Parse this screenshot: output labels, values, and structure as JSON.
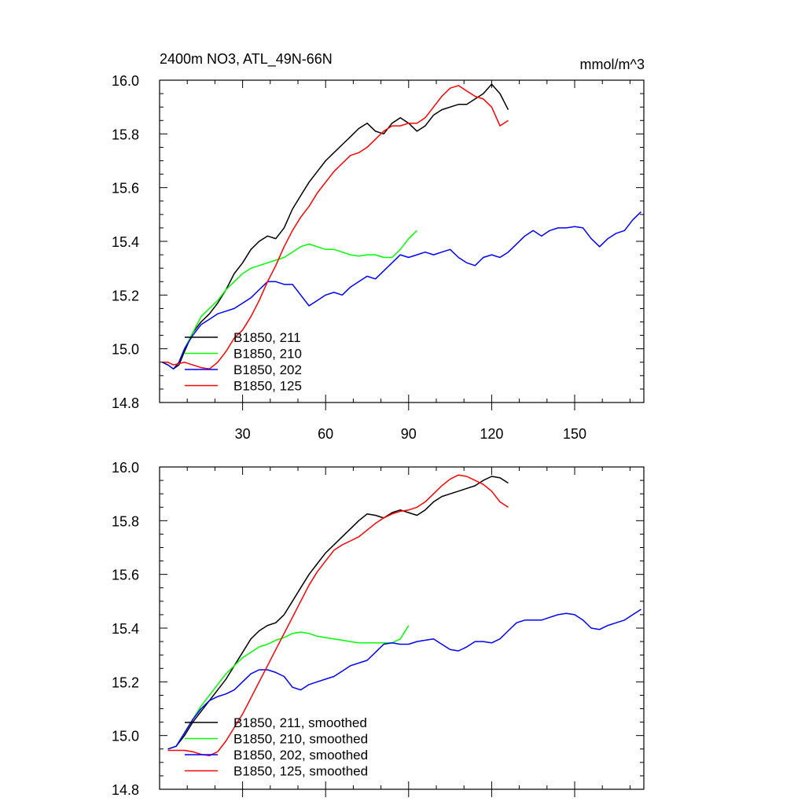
{
  "chart_data": [
    {
      "type": "line",
      "title": "2400m NO3, ATL_49N-66N",
      "units": "mmol/m^3",
      "xlim": [
        0,
        175
      ],
      "ylim": [
        14.8,
        16.0
      ],
      "x_ticks": [
        30,
        60,
        90,
        120,
        150
      ],
      "x_tick_labels": [
        "30",
        "60",
        "90",
        "120",
        "150"
      ],
      "y_ticks": [
        14.8,
        15.0,
        15.2,
        15.4,
        15.6,
        15.8,
        16.0
      ],
      "y_tick_labels": [
        "14.8",
        "15.0",
        "15.2",
        "15.4",
        "15.6",
        "15.8",
        "16.0"
      ],
      "legend_position": "bottom-left",
      "series": [
        {
          "name": "B1850, 211",
          "color": "#000000",
          "x": [
            1,
            3,
            5,
            7,
            9,
            12,
            15,
            18,
            21,
            24,
            27,
            30,
            33,
            36,
            39,
            42,
            45,
            48,
            51,
            54,
            57,
            60,
            63,
            66,
            69,
            72,
            75,
            78,
            81,
            84,
            87,
            90,
            93,
            96,
            99,
            102,
            105,
            108,
            111,
            114,
            117,
            120,
            123,
            126
          ],
          "y": [
            14.95,
            14.94,
            14.925,
            14.94,
            14.99,
            15.06,
            15.1,
            15.13,
            15.17,
            15.22,
            15.28,
            15.32,
            15.37,
            15.4,
            15.42,
            15.41,
            15.45,
            15.52,
            15.57,
            15.62,
            15.66,
            15.7,
            15.73,
            15.76,
            15.79,
            15.82,
            15.84,
            15.81,
            15.8,
            15.84,
            15.86,
            15.84,
            15.81,
            15.83,
            15.87,
            15.89,
            15.9,
            15.91,
            15.91,
            15.93,
            15.95,
            15.985,
            15.95,
            15.89
          ]
        },
        {
          "name": "B1850, 210",
          "color": "#00ff00",
          "x": [
            1,
            3,
            5,
            7,
            9,
            12,
            15,
            18,
            21,
            24,
            27,
            30,
            33,
            36,
            39,
            42,
            45,
            48,
            51,
            54,
            57,
            60,
            63,
            66,
            69,
            72,
            75,
            78,
            81,
            84,
            87,
            90,
            93
          ],
          "y": [
            14.95,
            14.94,
            14.925,
            14.95,
            15.0,
            15.06,
            15.12,
            15.15,
            15.18,
            15.22,
            15.25,
            15.28,
            15.3,
            15.31,
            15.32,
            15.33,
            15.34,
            15.36,
            15.38,
            15.39,
            15.38,
            15.37,
            15.37,
            15.36,
            15.35,
            15.345,
            15.35,
            15.35,
            15.34,
            15.34,
            15.37,
            15.41,
            15.44
          ]
        },
        {
          "name": "B1850, 202",
          "color": "#0000ff",
          "x": [
            1,
            3,
            5,
            7,
            9,
            12,
            15,
            18,
            21,
            24,
            27,
            30,
            33,
            36,
            39,
            42,
            45,
            48,
            51,
            54,
            57,
            60,
            63,
            66,
            69,
            72,
            75,
            78,
            81,
            84,
            87,
            90,
            93,
            96,
            99,
            102,
            105,
            108,
            111,
            114,
            117,
            120,
            123,
            126,
            129,
            132,
            135,
            138,
            141,
            144,
            147,
            150,
            153,
            156,
            159,
            162,
            165,
            168,
            171,
            174
          ],
          "y": [
            14.95,
            14.94,
            14.925,
            14.95,
            15.0,
            15.05,
            15.09,
            15.11,
            15.13,
            15.14,
            15.15,
            15.17,
            15.19,
            15.22,
            15.25,
            15.25,
            15.24,
            15.24,
            15.2,
            15.16,
            15.18,
            15.2,
            15.21,
            15.2,
            15.23,
            15.25,
            15.27,
            15.26,
            15.29,
            15.32,
            15.35,
            15.34,
            15.35,
            15.36,
            15.35,
            15.36,
            15.37,
            15.34,
            15.32,
            15.31,
            15.34,
            15.35,
            15.34,
            15.36,
            15.39,
            15.42,
            15.44,
            15.42,
            15.44,
            15.45,
            15.45,
            15.455,
            15.45,
            15.41,
            15.38,
            15.41,
            15.43,
            15.44,
            15.48,
            15.51
          ]
        },
        {
          "name": "B1850, 125",
          "color": "#ff0000",
          "x": [
            1,
            3,
            5,
            7,
            9,
            12,
            15,
            18,
            21,
            24,
            27,
            30,
            33,
            36,
            39,
            42,
            45,
            48,
            51,
            54,
            57,
            60,
            63,
            66,
            69,
            72,
            75,
            78,
            81,
            84,
            87,
            90,
            93,
            96,
            99,
            102,
            105,
            108,
            111,
            114,
            117,
            120,
            123,
            126
          ],
          "y": [
            14.95,
            14.95,
            14.94,
            14.945,
            14.95,
            14.94,
            14.93,
            14.925,
            14.95,
            14.99,
            15.04,
            15.07,
            15.12,
            15.18,
            15.25,
            15.31,
            15.38,
            15.44,
            15.49,
            15.53,
            15.58,
            15.62,
            15.66,
            15.69,
            15.72,
            15.73,
            15.75,
            15.78,
            15.81,
            15.83,
            15.83,
            15.84,
            15.84,
            15.86,
            15.9,
            15.94,
            15.97,
            15.98,
            15.96,
            15.94,
            15.93,
            15.9,
            15.83,
            15.85
          ]
        }
      ]
    },
    {
      "type": "line",
      "xlim": [
        0,
        175
      ],
      "ylim": [
        14.8,
        16.0
      ],
      "y_ticks": [
        14.8,
        15.0,
        15.2,
        15.4,
        15.6,
        15.8,
        16.0
      ],
      "y_tick_labels": [
        "14.8",
        "15.0",
        "15.2",
        "15.4",
        "15.6",
        "15.8",
        "16.0"
      ],
      "x_ticks": [
        30,
        60,
        90,
        120,
        150
      ],
      "legend_position": "bottom-left",
      "series": [
        {
          "name": "B1850, 211, smoothed",
          "color": "#000000",
          "x": [
            3,
            6,
            9,
            12,
            15,
            18,
            21,
            24,
            27,
            30,
            33,
            36,
            39,
            42,
            45,
            48,
            51,
            54,
            57,
            60,
            63,
            66,
            69,
            72,
            75,
            78,
            81,
            84,
            87,
            90,
            93,
            96,
            99,
            102,
            105,
            108,
            111,
            114,
            117,
            120,
            123,
            126
          ],
          "y": [
            14.95,
            14.96,
            15.0,
            15.05,
            15.09,
            15.13,
            15.17,
            15.21,
            15.26,
            15.31,
            15.36,
            15.39,
            15.41,
            15.42,
            15.45,
            15.5,
            15.55,
            15.6,
            15.64,
            15.68,
            15.71,
            15.74,
            15.77,
            15.8,
            15.825,
            15.82,
            15.81,
            15.83,
            15.84,
            15.83,
            15.82,
            15.84,
            15.87,
            15.89,
            15.9,
            15.91,
            15.92,
            15.93,
            15.95,
            15.965,
            15.96,
            15.94
          ]
        },
        {
          "name": "B1850, 210, smoothed",
          "color": "#00ff00",
          "x": [
            3,
            6,
            9,
            12,
            15,
            18,
            21,
            24,
            27,
            30,
            33,
            36,
            39,
            42,
            45,
            48,
            51,
            54,
            57,
            60,
            63,
            66,
            69,
            72,
            75,
            78,
            81,
            84,
            87,
            90
          ],
          "y": [
            14.95,
            14.96,
            15.01,
            15.06,
            15.11,
            15.15,
            15.19,
            15.23,
            15.26,
            15.29,
            15.31,
            15.33,
            15.34,
            15.355,
            15.365,
            15.38,
            15.385,
            15.38,
            15.37,
            15.365,
            15.36,
            15.355,
            15.35,
            15.345,
            15.345,
            15.345,
            15.345,
            15.345,
            15.36,
            15.41
          ]
        },
        {
          "name": "B1850, 202, smoothed",
          "color": "#0000ff",
          "x": [
            3,
            6,
            9,
            12,
            15,
            18,
            21,
            24,
            27,
            30,
            33,
            36,
            39,
            42,
            45,
            48,
            51,
            54,
            57,
            60,
            63,
            66,
            69,
            72,
            75,
            78,
            81,
            84,
            87,
            90,
            93,
            96,
            99,
            102,
            105,
            108,
            111,
            114,
            117,
            120,
            123,
            126,
            129,
            132,
            135,
            138,
            141,
            144,
            147,
            150,
            153,
            156,
            159,
            162,
            165,
            168,
            171,
            174
          ],
          "y": [
            14.95,
            14.96,
            15.01,
            15.06,
            15.1,
            15.13,
            15.145,
            15.155,
            15.17,
            15.2,
            15.23,
            15.245,
            15.245,
            15.235,
            15.22,
            15.18,
            15.17,
            15.19,
            15.2,
            15.21,
            15.22,
            15.24,
            15.26,
            15.27,
            15.28,
            15.31,
            15.34,
            15.345,
            15.34,
            15.34,
            15.35,
            15.355,
            15.36,
            15.34,
            15.32,
            15.315,
            15.33,
            15.35,
            15.35,
            15.345,
            15.36,
            15.39,
            15.42,
            15.43,
            15.43,
            15.43,
            15.44,
            15.45,
            15.455,
            15.45,
            15.43,
            15.4,
            15.395,
            15.41,
            15.42,
            15.43,
            15.45,
            15.47
          ]
        },
        {
          "name": "B1850, 125, smoothed",
          "color": "#ff0000",
          "x": [
            3,
            6,
            9,
            12,
            15,
            18,
            21,
            24,
            27,
            30,
            33,
            36,
            39,
            42,
            45,
            48,
            51,
            54,
            57,
            60,
            63,
            66,
            69,
            72,
            75,
            78,
            81,
            84,
            87,
            90,
            93,
            96,
            99,
            102,
            105,
            108,
            111,
            114,
            117,
            120,
            123,
            126
          ],
          "y": [
            14.945,
            14.945,
            14.945,
            14.94,
            14.93,
            14.925,
            14.94,
            14.98,
            15.03,
            15.08,
            15.14,
            15.2,
            15.26,
            15.32,
            15.38,
            15.44,
            15.5,
            15.56,
            15.61,
            15.65,
            15.69,
            15.71,
            15.725,
            15.74,
            15.765,
            15.79,
            15.81,
            15.825,
            15.835,
            15.84,
            15.85,
            15.87,
            15.9,
            15.93,
            15.955,
            15.97,
            15.965,
            15.95,
            15.935,
            15.91,
            15.87,
            15.85
          ]
        }
      ]
    }
  ]
}
